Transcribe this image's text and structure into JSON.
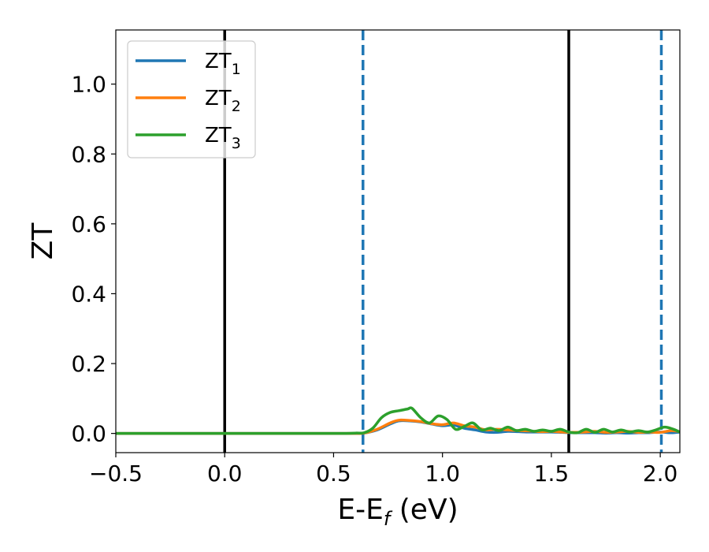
{
  "chart_data": {
    "type": "line",
    "xlabel": {
      "main": "E-E",
      "sub": "f",
      "suffix": " (eV)"
    },
    "ylabel": "ZT",
    "xlim": [
      -0.5,
      2.09
    ],
    "ylim": [
      -0.055,
      1.155
    ],
    "xticks": [
      -0.5,
      0.0,
      0.5,
      1.0,
      1.5,
      2.0
    ],
    "xtick_labels": [
      "−0.5",
      "0.0",
      "0.5",
      "1.0",
      "1.5",
      "2.0"
    ],
    "yticks": [
      0.0,
      0.2,
      0.4,
      0.6,
      0.8,
      1.0
    ],
    "ytick_labels": [
      "0.0",
      "0.2",
      "0.4",
      "0.6",
      "0.8",
      "1.0"
    ],
    "grid": false,
    "legend_position": "top-left",
    "vlines": [
      {
        "x": 0.0,
        "style": "solid",
        "color": "#000000"
      },
      {
        "x": 1.58,
        "style": "solid",
        "color": "#000000"
      },
      {
        "x": 0.635,
        "style": "dashed",
        "color": "#1f77b4"
      },
      {
        "x": 2.005,
        "style": "dashed",
        "color": "#1f77b4"
      }
    ],
    "series": [
      {
        "name": "ZT",
        "subscript": "1",
        "color": "#1f77b4",
        "x": [
          -0.5,
          0.0,
          0.5,
          0.6,
          0.64,
          0.7,
          0.76,
          0.8,
          0.85,
          0.9,
          0.95,
          1.0,
          1.05,
          1.1,
          1.15,
          1.2,
          1.25,
          1.3,
          1.35,
          1.4,
          1.45,
          1.5,
          1.55,
          1.6,
          1.65,
          1.7,
          1.75,
          1.8,
          1.85,
          1.9,
          1.95,
          2.0,
          2.05,
          2.09
        ],
        "y": [
          0.0,
          0.0,
          0.0,
          0.0,
          0.001,
          0.01,
          0.027,
          0.036,
          0.036,
          0.033,
          0.027,
          0.022,
          0.024,
          0.015,
          0.01,
          0.004,
          0.003,
          0.006,
          0.005,
          0.004,
          0.004,
          0.004,
          0.003,
          0.002,
          0.002,
          0.002,
          0.001,
          0.002,
          0.001,
          0.002,
          0.002,
          0.004,
          0.002,
          0.004
        ]
      },
      {
        "name": "ZT",
        "subscript": "2",
        "color": "#ff7f0e",
        "x": [
          -0.5,
          0.0,
          0.5,
          0.6,
          0.64,
          0.7,
          0.76,
          0.8,
          0.85,
          0.9,
          0.95,
          1.0,
          1.05,
          1.1,
          1.15,
          1.2,
          1.25,
          1.3,
          1.35,
          1.4,
          1.45,
          1.5,
          1.55,
          1.6,
          1.65,
          1.7,
          1.75,
          1.8,
          1.85,
          1.9,
          1.95,
          2.0,
          2.05,
          2.09
        ],
        "y": [
          0.0,
          0.0,
          0.0,
          0.0,
          0.001,
          0.012,
          0.03,
          0.038,
          0.037,
          0.034,
          0.028,
          0.025,
          0.03,
          0.022,
          0.018,
          0.01,
          0.012,
          0.01,
          0.008,
          0.007,
          0.005,
          0.006,
          0.004,
          0.003,
          0.004,
          0.006,
          0.003,
          0.004,
          0.006,
          0.003,
          0.004,
          0.003,
          0.008,
          0.005
        ]
      },
      {
        "name": "ZT",
        "subscript": "3",
        "color": "#2ca02c",
        "x": [
          -0.5,
          0.0,
          0.5,
          0.6,
          0.64,
          0.68,
          0.72,
          0.76,
          0.8,
          0.84,
          0.86,
          0.9,
          0.94,
          0.98,
          1.02,
          1.06,
          1.1,
          1.14,
          1.18,
          1.22,
          1.26,
          1.3,
          1.34,
          1.38,
          1.42,
          1.46,
          1.5,
          1.54,
          1.58,
          1.62,
          1.66,
          1.7,
          1.74,
          1.78,
          1.82,
          1.86,
          1.9,
          1.94,
          1.98,
          2.02,
          2.06,
          2.09
        ],
        "y": [
          0.0,
          0.0,
          0.0,
          0.001,
          0.002,
          0.015,
          0.045,
          0.06,
          0.065,
          0.07,
          0.072,
          0.045,
          0.03,
          0.05,
          0.04,
          0.012,
          0.02,
          0.03,
          0.01,
          0.015,
          0.008,
          0.018,
          0.008,
          0.012,
          0.006,
          0.01,
          0.006,
          0.012,
          0.004,
          0.002,
          0.012,
          0.003,
          0.012,
          0.004,
          0.01,
          0.004,
          0.008,
          0.004,
          0.01,
          0.018,
          0.012,
          0.004
        ]
      }
    ]
  }
}
